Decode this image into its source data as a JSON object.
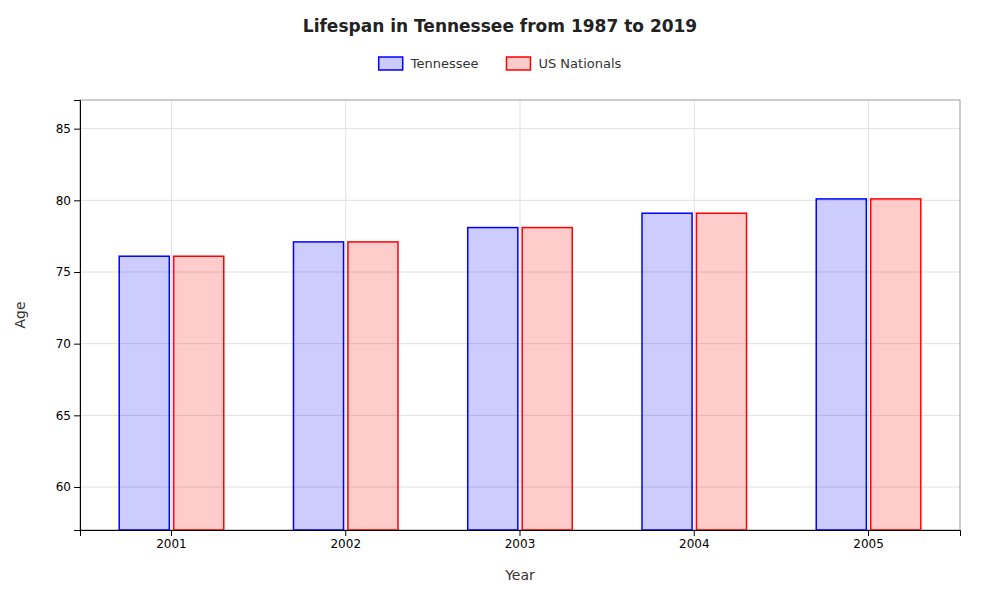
{
  "chart_data": {
    "type": "bar",
    "title": "Lifespan in Tennessee from 1987 to 2019",
    "x_label": "Year",
    "y_label": "Age",
    "categories": [
      "2001",
      "2002",
      "2003",
      "2004",
      "2005"
    ],
    "series": [
      {
        "name": "Tennessee",
        "color": "#0000ff",
        "values": [
          76.1,
          77.1,
          78.1,
          79.1,
          80.1
        ]
      },
      {
        "name": "US Nationals",
        "color": "#ff0000",
        "values": [
          76.1,
          77.1,
          78.1,
          79.1,
          80.1
        ]
      }
    ],
    "ylim": [
      57,
      87
    ],
    "yticks": [
      60,
      65,
      70,
      75,
      80,
      85
    ],
    "grid": true,
    "legend": "top"
  }
}
